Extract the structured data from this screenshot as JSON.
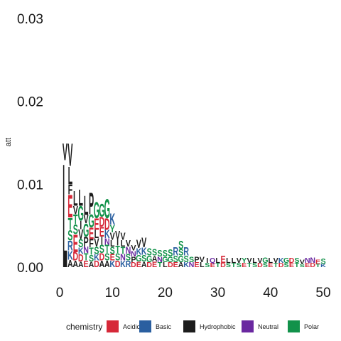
{
  "chart_data": {
    "type": "bar",
    "subtype": "sequence-logo",
    "ylabel": "att",
    "xlim": [
      0,
      50
    ],
    "ylim": [
      0,
      0.03
    ],
    "x_ticks": [
      0,
      10,
      20,
      30,
      40,
      50
    ],
    "y_ticks": [
      0.0,
      0.01,
      0.02,
      0.03
    ],
    "y_tick_labels": [
      "0.00",
      "0.01",
      "0.02",
      "0.03"
    ],
    "grid": false,
    "legend": {
      "title": "chemistry",
      "position": "bottom",
      "entries": [
        {
          "name": "Acidic",
          "color": "#d62838"
        },
        {
          "name": "Basic",
          "color": "#2a5fa0"
        },
        {
          "name": "Hydrophobic",
          "color": "#1c1c1c"
        },
        {
          "name": "Neutral",
          "color": "#6a28a0"
        },
        {
          "name": "Polar",
          "color": "#12924a"
        }
      ]
    },
    "chemistry_colors": {
      "Acidic": "#d62838",
      "Basic": "#2a5fa0",
      "Hydrophobic": "#1c1c1c",
      "Neutral": "#6a28a0",
      "Polar": "#12924a"
    },
    "positions": [
      {
        "x": 1,
        "stack": [
          [
            "L",
            0.0129
          ],
          [
            "V",
            0.0021
          ]
        ]
      },
      {
        "x": 2,
        "stack": [
          [
            "A",
            0.0009
          ],
          [
            "K",
            0.0011
          ],
          [
            "R",
            0.0012
          ],
          [
            "S",
            0.0013
          ],
          [
            "T",
            0.0015
          ],
          [
            "E",
            0.0028
          ],
          [
            "F",
            0.0012
          ],
          [
            "L",
            0.0022
          ],
          [
            "V",
            0.0028
          ]
        ]
      },
      {
        "x": 3,
        "stack": [
          [
            "A",
            0.0008
          ],
          [
            "D",
            0.001
          ],
          [
            "E",
            0.0022
          ],
          [
            "S",
            0.0012
          ],
          [
            "T",
            0.0012
          ],
          [
            "V",
            0.001
          ],
          [
            "L",
            0.0018
          ]
        ]
      },
      {
        "x": 4,
        "stack": [
          [
            "A",
            0.0007
          ],
          [
            "D",
            0.0009
          ],
          [
            "K",
            0.0008
          ],
          [
            "S",
            0.001
          ],
          [
            "V",
            0.0012
          ],
          [
            "I",
            0.001
          ],
          [
            "G",
            0.0018
          ],
          [
            "L",
            0.002
          ]
        ]
      },
      {
        "x": 5,
        "stack": [
          [
            "E",
            0.0008
          ],
          [
            "T",
            0.0009
          ],
          [
            "N",
            0.0008
          ],
          [
            "P",
            0.0012
          ],
          [
            "G",
            0.0016
          ],
          [
            "V",
            0.001
          ],
          [
            "L",
            0.0024
          ]
        ]
      },
      {
        "x": 6,
        "stack": [
          [
            "A",
            0.0007
          ],
          [
            "S",
            0.0008
          ],
          [
            "T",
            0.0009
          ],
          [
            "F",
            0.001
          ],
          [
            "E",
            0.0014
          ],
          [
            "G",
            0.0016
          ],
          [
            "P",
            0.0027
          ]
        ]
      },
      {
        "x": 7,
        "stack": [
          [
            "D",
            0.0008
          ],
          [
            "K",
            0.0008
          ],
          [
            "S",
            0.0009
          ],
          [
            "V",
            0.001
          ],
          [
            "L",
            0.001
          ],
          [
            "E",
            0.0014
          ],
          [
            "G",
            0.002
          ]
        ]
      },
      {
        "x": 8,
        "stack": [
          [
            "A",
            0.0008
          ],
          [
            "D",
            0.0009
          ],
          [
            "S",
            0.001
          ],
          [
            "I",
            0.001
          ],
          [
            "E",
            0.0012
          ],
          [
            "D",
            0.0012
          ],
          [
            "G",
            0.0016
          ]
        ]
      },
      {
        "x": 9,
        "stack": [
          [
            "A",
            0.0008
          ],
          [
            "S",
            0.0009
          ],
          [
            "T",
            0.001
          ],
          [
            "N",
            0.0008
          ],
          [
            "K",
            0.001
          ],
          [
            "D",
            0.0014
          ],
          [
            "G",
            0.0024
          ]
        ]
      },
      {
        "x": 10,
        "stack": [
          [
            "K",
            0.0008
          ],
          [
            "E",
            0.0008
          ],
          [
            "S",
            0.0009
          ],
          [
            "L",
            0.0008
          ],
          [
            "V",
            0.0009
          ],
          [
            "Y",
            0.0009
          ],
          [
            "K",
            0.0014
          ]
        ]
      },
      {
        "x": 11,
        "stack": [
          [
            "D",
            0.0008
          ],
          [
            "S",
            0.0009
          ],
          [
            "T",
            0.0009
          ],
          [
            "I",
            0.0008
          ],
          [
            "V",
            0.001
          ]
        ]
      },
      {
        "x": 12,
        "stack": [
          [
            "K",
            0.0008
          ],
          [
            "N",
            0.0008
          ],
          [
            "T",
            0.0009
          ],
          [
            "L",
            0.0008
          ],
          [
            "V",
            0.0009
          ]
        ]
      },
      {
        "x": 13,
        "stack": [
          [
            "R",
            0.0008
          ],
          [
            "S",
            0.0008
          ],
          [
            "N",
            0.0009
          ],
          [
            "V",
            0.0008
          ]
        ]
      },
      {
        "x": 14,
        "stack": [
          [
            "D",
            0.0006
          ],
          [
            "P",
            0.0007
          ],
          [
            "N",
            0.0007
          ],
          [
            "V",
            0.0007
          ]
        ]
      },
      {
        "x": 15,
        "stack": [
          [
            "E",
            0.0007
          ],
          [
            "G",
            0.0008
          ],
          [
            "K",
            0.0008
          ],
          [
            "V",
            0.001
          ]
        ]
      },
      {
        "x": 16,
        "stack": [
          [
            "A",
            0.0007
          ],
          [
            "S",
            0.0008
          ],
          [
            "K",
            0.0009
          ],
          [
            "V",
            0.0012
          ]
        ]
      },
      {
        "x": 17,
        "stack": [
          [
            "D",
            0.0006
          ],
          [
            "G",
            0.0008
          ],
          [
            "S",
            0.0009
          ]
        ]
      },
      {
        "x": 18,
        "stack": [
          [
            "E",
            0.0007
          ],
          [
            "A",
            0.0007
          ],
          [
            "S",
            0.0008
          ]
        ]
      },
      {
        "x": 19,
        "stack": [
          [
            "T",
            0.0006
          ],
          [
            "N",
            0.0007
          ],
          [
            "S",
            0.0008
          ]
        ]
      },
      {
        "x": 20,
        "stack": [
          [
            "L",
            0.0006
          ],
          [
            "G",
            0.0007
          ],
          [
            "S",
            0.0008
          ]
        ]
      },
      {
        "x": 21,
        "stack": [
          [
            "D",
            0.0006
          ],
          [
            "G",
            0.0007
          ],
          [
            "S",
            0.0009
          ]
        ]
      },
      {
        "x": 22,
        "stack": [
          [
            "E",
            0.0006
          ],
          [
            "S",
            0.0008
          ],
          [
            "R",
            0.001
          ]
        ]
      },
      {
        "x": 23,
        "stack": [
          [
            "A",
            0.0006
          ],
          [
            "G",
            0.0008
          ],
          [
            "S",
            0.0008
          ],
          [
            "S",
            0.001
          ]
        ]
      },
      {
        "x": 24,
        "stack": [
          [
            "K",
            0.0006
          ],
          [
            "S",
            0.0008
          ],
          [
            "R",
            0.001
          ]
        ]
      },
      {
        "x": 25,
        "stack": [
          [
            "N",
            0.0006
          ],
          [
            "S",
            0.0007
          ]
        ]
      },
      {
        "x": 26,
        "stack": [
          [
            "E",
            0.0006
          ],
          [
            "P",
            0.0007
          ]
        ]
      },
      {
        "x": 27,
        "stack": [
          [
            "L",
            0.0006
          ],
          [
            "V",
            0.0007
          ]
        ]
      },
      {
        "x": 28,
        "stack": [
          [
            "S",
            0.0005
          ],
          [
            "I",
            0.0006
          ]
        ]
      },
      {
        "x": 29,
        "stack": [
          [
            "E",
            0.0005
          ],
          [
            "Q",
            0.0006
          ]
        ]
      },
      {
        "x": 30,
        "stack": [
          [
            "T",
            0.0005
          ],
          [
            "L",
            0.0006
          ]
        ]
      },
      {
        "x": 31,
        "stack": [
          [
            "D",
            0.0005
          ],
          [
            "E",
            0.0009
          ]
        ]
      },
      {
        "x": 32,
        "stack": [
          [
            "S",
            0.0005
          ],
          [
            "L",
            0.0006
          ]
        ]
      },
      {
        "x": 33,
        "stack": [
          [
            "T",
            0.0005
          ],
          [
            "L",
            0.0006
          ]
        ]
      },
      {
        "x": 34,
        "stack": [
          [
            "S",
            0.0005
          ],
          [
            "V",
            0.0006
          ]
        ]
      },
      {
        "x": 35,
        "stack": [
          [
            "E",
            0.0005
          ],
          [
            "Y",
            0.0006
          ]
        ]
      },
      {
        "x": 36,
        "stack": [
          [
            "T",
            0.0005
          ],
          [
            "V",
            0.0006
          ]
        ]
      },
      {
        "x": 37,
        "stack": [
          [
            "S",
            0.0005
          ],
          [
            "L",
            0.0006
          ]
        ]
      },
      {
        "x": 38,
        "stack": [
          [
            "D",
            0.0005
          ],
          [
            "V",
            0.0006
          ]
        ]
      },
      {
        "x": 39,
        "stack": [
          [
            "S",
            0.0005
          ],
          [
            "G",
            0.0007
          ]
        ]
      },
      {
        "x": 40,
        "stack": [
          [
            "E",
            0.0005
          ],
          [
            "L",
            0.0006
          ]
        ]
      },
      {
        "x": 41,
        "stack": [
          [
            "T",
            0.0005
          ],
          [
            "V",
            0.0006
          ]
        ]
      },
      {
        "x": 42,
        "stack": [
          [
            "D",
            0.0005
          ],
          [
            "K",
            0.0006
          ]
        ]
      },
      {
        "x": 43,
        "stack": [
          [
            "S",
            0.0005
          ],
          [
            "G",
            0.0006
          ]
        ]
      },
      {
        "x": 44,
        "stack": [
          [
            "E",
            0.0005
          ],
          [
            "D",
            0.0006
          ]
        ]
      },
      {
        "x": 45,
        "stack": [
          [
            "T",
            0.0005
          ],
          [
            "S",
            0.0006
          ]
        ]
      },
      {
        "x": 46,
        "stack": [
          [
            "S",
            0.0004
          ],
          [
            "V",
            0.0005
          ]
        ]
      },
      {
        "x": 47,
        "stack": [
          [
            "E",
            0.0005
          ],
          [
            "N",
            0.0006
          ]
        ]
      },
      {
        "x": 48,
        "stack": [
          [
            "D",
            0.0005
          ],
          [
            "N",
            0.0007
          ]
        ]
      },
      {
        "x": 49,
        "stack": [
          [
            "T",
            0.0004
          ],
          [
            "E",
            0.0005
          ]
        ]
      },
      {
        "x": 50,
        "stack": [
          [
            "K",
            0.0004
          ],
          [
            "S",
            0.0007
          ]
        ]
      }
    ]
  }
}
